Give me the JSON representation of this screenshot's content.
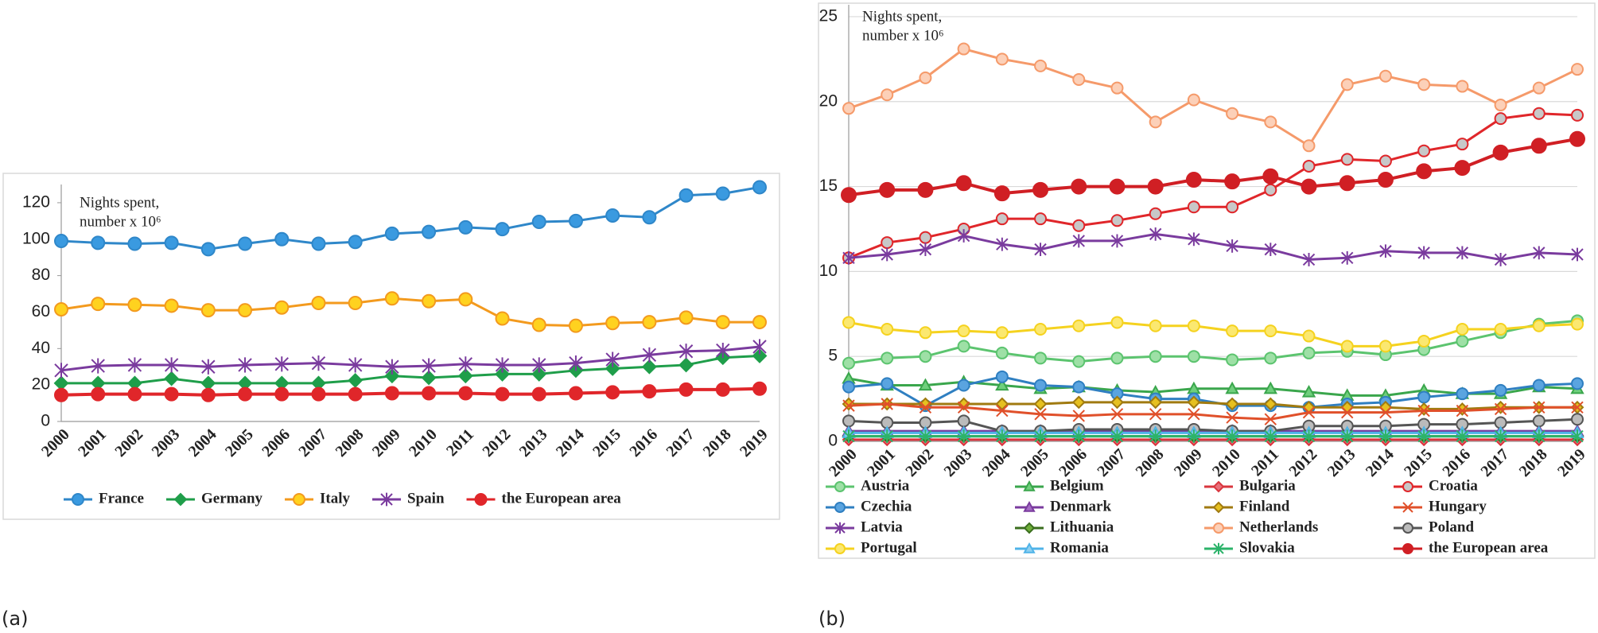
{
  "chart_data": [
    {
      "type": "line",
      "caption": "(a)",
      "annotation": [
        "Nights spent,",
        "number x 10⁶"
      ],
      "categories": [
        "2000",
        "2001",
        "2002",
        "2003",
        "2004",
        "2005",
        "2006",
        "2007",
        "2008",
        "2009",
        "2010",
        "2011",
        "2012",
        "2013",
        "2014",
        "2015",
        "2016",
        "2017",
        "2018",
        "2019"
      ],
      "ylim": [
        0,
        130
      ],
      "yticks": [
        0,
        20,
        40,
        60,
        80,
        100,
        120
      ],
      "grid": false,
      "series": [
        {
          "name": "France",
          "color": "#2f87c9",
          "marker": "circle",
          "marker_fill": "#3a9ae0",
          "values": [
            99,
            98,
            97.5,
            98,
            94.5,
            97.5,
            100,
            97.5,
            98.5,
            103,
            104,
            106.5,
            105.5,
            109.5,
            110,
            113,
            112,
            124,
            125,
            128.5
          ]
        },
        {
          "name": "Germany",
          "color": "#1f9e4a",
          "marker": "diamond",
          "marker_fill": "#1f9e4a",
          "values": [
            21,
            21,
            21,
            23.5,
            21,
            21,
            21,
            21,
            22.5,
            25,
            24,
            25,
            26,
            26,
            28,
            29,
            30,
            31,
            35,
            36
          ]
        },
        {
          "name": "Italy",
          "color": "#f39a1e",
          "marker": "circle",
          "marker_fill": "#ffd21f",
          "values": [
            61.5,
            64.5,
            64,
            63.5,
            61,
            61,
            62.5,
            65,
            65,
            67.5,
            66,
            67,
            56.5,
            53,
            52.5,
            54,
            54.5,
            57,
            54.5,
            54.5
          ]
        },
        {
          "name": "Spain",
          "color": "#7a3b9e",
          "marker": "asterisk",
          "marker_fill": "#7a3b9e",
          "values": [
            28,
            30.5,
            31,
            31,
            30,
            31,
            31.5,
            32,
            31,
            30,
            30.5,
            31.5,
            31,
            31,
            32,
            34,
            36.5,
            38.5,
            39,
            41
          ]
        },
        {
          "name": "the European area",
          "color": "#e0262a",
          "marker": "circle",
          "marker_fill": "#e0262a",
          "values": [
            14.5,
            15,
            15,
            15,
            14.5,
            15,
            15,
            15,
            15,
            15.5,
            15.5,
            15.5,
            15,
            15,
            15.5,
            16,
            16.5,
            17.5,
            17.5,
            18
          ]
        }
      ]
    },
    {
      "type": "line",
      "caption": "(b)",
      "annotation": [
        "Nights spent,",
        "number x 10⁶"
      ],
      "categories": [
        "2000",
        "2001",
        "2002",
        "2003",
        "2004",
        "2005",
        "2006",
        "2007",
        "2008",
        "2009",
        "2010",
        "2011",
        "2012",
        "2013",
        "2014",
        "2015",
        "2016",
        "2017",
        "2018",
        "2019"
      ],
      "ylim": [
        0,
        25.7
      ],
      "yticks": [
        0,
        5,
        10,
        15,
        20,
        25
      ],
      "grid": true,
      "series": [
        {
          "name": "Austria",
          "color": "#5cc46f",
          "marker": "circle",
          "marker_fill": "#9ee0a6",
          "values": [
            4.6,
            4.9,
            5.0,
            5.6,
            5.2,
            4.9,
            4.7,
            4.9,
            5.0,
            5.0,
            4.8,
            4.9,
            5.2,
            5.3,
            5.1,
            5.4,
            5.9,
            6.4,
            6.9,
            7.1
          ]
        },
        {
          "name": "Belgium",
          "color": "#3aa64c",
          "marker": "triangle",
          "marker_fill": "#6fcf7c",
          "values": [
            3.7,
            3.3,
            3.3,
            3.5,
            3.3,
            3.1,
            3.2,
            3.0,
            2.9,
            3.1,
            3.1,
            3.1,
            2.9,
            2.7,
            2.7,
            3.0,
            2.8,
            2.8,
            3.2,
            3.1
          ]
        },
        {
          "name": "Bulgaria",
          "color": "#d9363e",
          "marker": "diamond",
          "marker_fill": "#e8707a",
          "values": [
            0.1,
            0.1,
            0.1,
            0.1,
            0.1,
            0.1,
            0.1,
            0.1,
            0.1,
            0.1,
            0.1,
            0.1,
            0.1,
            0.1,
            0.1,
            0.1,
            0.1,
            0.1,
            0.1,
            0.1
          ]
        },
        {
          "name": "Croatia",
          "color": "#e0262a",
          "marker": "circle",
          "marker_fill": "#c8c8c8",
          "values": [
            10.8,
            11.7,
            12.0,
            12.5,
            13.1,
            13.1,
            12.7,
            13.0,
            13.4,
            13.8,
            13.8,
            14.8,
            16.2,
            16.6,
            16.5,
            17.1,
            17.5,
            19.0,
            19.3,
            19.2
          ]
        },
        {
          "name": "Czechia",
          "color": "#2f7fc1",
          "marker": "circle",
          "marker_fill": "#5aa4e0",
          "values": [
            3.2,
            3.4,
            2.1,
            3.3,
            3.8,
            3.3,
            3.2,
            2.8,
            2.5,
            2.5,
            2.1,
            2.1,
            2.0,
            2.2,
            2.3,
            2.6,
            2.8,
            3.0,
            3.3,
            3.4
          ]
        },
        {
          "name": "Denmark",
          "color": "#7a3b9e",
          "marker": "triangle",
          "marker_fill": "#a46cc4",
          "values": [
            0.6,
            0.6,
            0.6,
            0.6,
            0.6,
            0.6,
            0.6,
            0.6,
            0.6,
            0.6,
            0.6,
            0.6,
            0.6,
            0.6,
            0.6,
            0.6,
            0.6,
            0.6,
            0.6,
            0.6
          ]
        },
        {
          "name": "Finland",
          "color": "#a07a10",
          "marker": "diamond",
          "marker_fill": "#e6c020",
          "values": [
            2.2,
            2.2,
            2.2,
            2.2,
            2.2,
            2.2,
            2.3,
            2.3,
            2.3,
            2.3,
            2.2,
            2.2,
            2.0,
            2.0,
            2.0,
            1.9,
            1.9,
            2.0,
            2.0,
            2.0
          ]
        },
        {
          "name": "Hungary",
          "color": "#e0502a",
          "marker": "x",
          "marker_fill": "#e0502a",
          "values": [
            2.1,
            2.2,
            2.0,
            2.0,
            1.8,
            1.6,
            1.5,
            1.6,
            1.6,
            1.6,
            1.4,
            1.3,
            1.7,
            1.7,
            1.7,
            1.8,
            1.8,
            1.9,
            2.0,
            2.0
          ]
        },
        {
          "name": "Latvia",
          "color": "#7a3b9e",
          "marker": "asterisk",
          "marker_fill": "#7a3b9e",
          "values": [
            10.8,
            11.0,
            11.3,
            12.1,
            11.6,
            11.3,
            11.8,
            11.8,
            12.2,
            11.9,
            11.5,
            11.3,
            10.7,
            10.8,
            11.2,
            11.1,
            11.1,
            10.7,
            11.1,
            11.0
          ]
        },
        {
          "name": "Lithuania",
          "color": "#3a6e1e",
          "marker": "diamond",
          "marker_fill": "#6fae3a",
          "values": [
            0.3,
            0.3,
            0.3,
            0.3,
            0.3,
            0.3,
            0.3,
            0.3,
            0.3,
            0.3,
            0.3,
            0.3,
            0.3,
            0.3,
            0.3,
            0.3,
            0.3,
            0.3,
            0.3,
            0.3
          ]
        },
        {
          "name": "Netherlands",
          "color": "#f59a6a",
          "marker": "circle",
          "marker_fill": "#fcd0b8",
          "values": [
            19.6,
            20.4,
            21.4,
            23.1,
            22.5,
            22.1,
            21.3,
            20.8,
            18.8,
            20.1,
            19.3,
            18.8,
            17.4,
            21.0,
            21.5,
            21.0,
            20.9,
            19.8,
            20.8,
            21.9
          ]
        },
        {
          "name": "Poland",
          "color": "#555555",
          "marker": "circle",
          "marker_fill": "#bbbbbb",
          "values": [
            1.2,
            1.1,
            1.1,
            1.2,
            0.6,
            0.6,
            0.7,
            0.7,
            0.7,
            0.7,
            0.6,
            0.6,
            0.9,
            0.9,
            0.9,
            1.0,
            1.0,
            1.1,
            1.2,
            1.3
          ]
        },
        {
          "name": "Portugal",
          "color": "#f5d21f",
          "marker": "circle",
          "marker_fill": "#fbe870",
          "values": [
            7.0,
            6.6,
            6.4,
            6.5,
            6.4,
            6.6,
            6.8,
            7.0,
            6.8,
            6.8,
            6.5,
            6.5,
            6.2,
            5.6,
            5.6,
            5.9,
            6.6,
            6.6,
            6.8,
            6.9
          ]
        },
        {
          "name": "Romania",
          "color": "#4fb3e8",
          "marker": "triangle",
          "marker_fill": "#8fd0f0",
          "values": [
            0.5,
            0.5,
            0.5,
            0.5,
            0.5,
            0.5,
            0.5,
            0.5,
            0.5,
            0.5,
            0.5,
            0.5,
            0.5,
            0.5,
            0.5,
            0.5,
            0.5,
            0.5,
            0.5,
            0.5
          ]
        },
        {
          "name": "Slovakia",
          "color": "#2cb36a",
          "marker": "asterisk",
          "marker_fill": "#2cb36a",
          "values": [
            0.3,
            0.3,
            0.3,
            0.3,
            0.3,
            0.3,
            0.3,
            0.3,
            0.3,
            0.3,
            0.3,
            0.3,
            0.3,
            0.3,
            0.3,
            0.3,
            0.3,
            0.3,
            0.3,
            0.3
          ]
        },
        {
          "name": "the European area",
          "color": "#d01f24",
          "marker": "circle",
          "marker_fill": "#d01f24",
          "values": [
            14.5,
            14.8,
            14.8,
            15.2,
            14.6,
            14.8,
            15.0,
            15.0,
            15.0,
            15.4,
            15.3,
            15.6,
            15.0,
            15.2,
            15.4,
            15.9,
            16.1,
            17.0,
            17.4,
            17.8
          ]
        }
      ]
    }
  ]
}
